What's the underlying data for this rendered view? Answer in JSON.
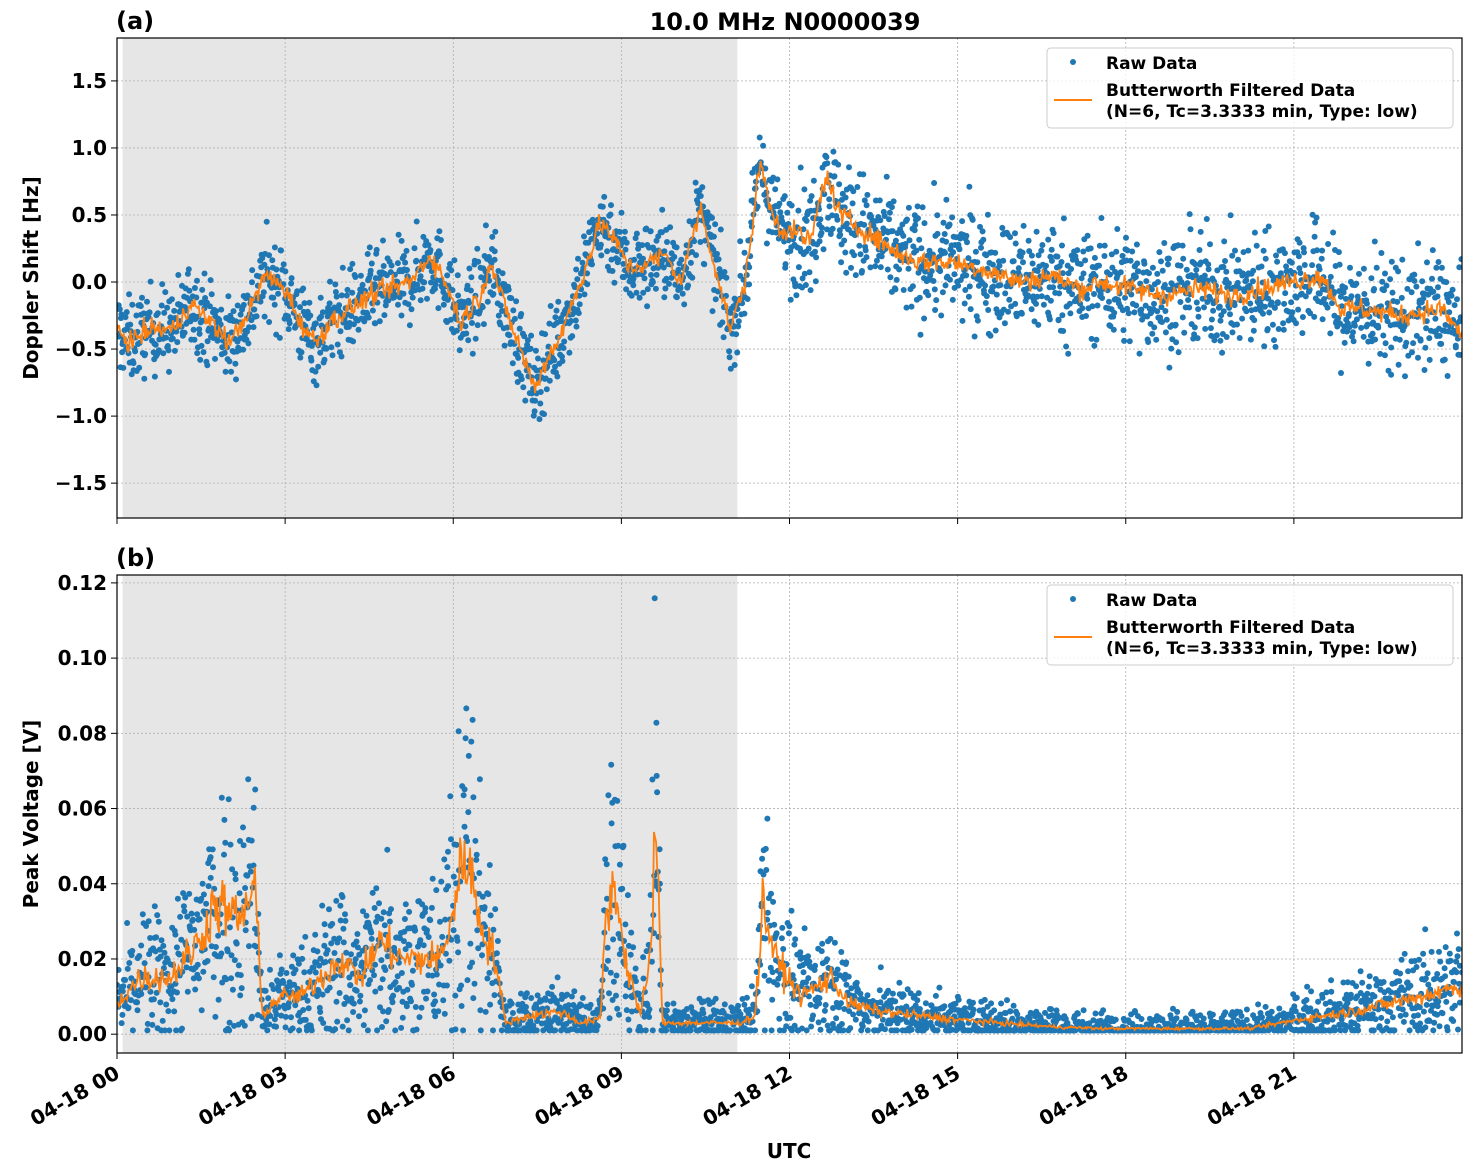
{
  "title": "10.0 MHz N0000039",
  "colors": {
    "raw": "#1f77b4",
    "filtered": "#ff7f0e",
    "shade": "#e6e6e6",
    "grid": "#b0b0b0"
  },
  "chart_data": [
    {
      "type": "scatter",
      "panel_label": "(a)",
      "ylabel": "Doppler Shift [Hz]",
      "xlabel": "",
      "xlim_hours": [
        0,
        24
      ],
      "ylim": [
        -1.76,
        1.82
      ],
      "yticks": [
        -1.5,
        -1.0,
        -0.5,
        0.0,
        0.5,
        1.0,
        1.5
      ],
      "ytick_labels": [
        "−1.5",
        "−1.0",
        "−0.5",
        "0.0",
        "0.5",
        "1.0",
        "1.5"
      ],
      "grid": true,
      "legend_placement": "upper-right",
      "legend": [
        "Raw Data",
        "Butterworth Filtered Data",
        "(N=6, Tc=3.3333 min, Type: low)"
      ],
      "shaded_span_hours": [
        0.1,
        11.07
      ],
      "filtered_series": {
        "name": "Butterworth Filtered Data (N=6, Tc=3.3333 min, Type: low)",
        "x_hours": [
          0,
          0.23,
          0.59,
          1.04,
          1.3,
          1.66,
          2.02,
          2.38,
          2.64,
          3,
          3.27,
          3.54,
          3.8,
          4.16,
          4.52,
          4.88,
          5.23,
          5.59,
          5.86,
          6.13,
          6.48,
          6.66,
          6.93,
          7.2,
          7.46,
          7.64,
          7.91,
          8.27,
          8.63,
          8.89,
          9.16,
          9.52,
          9.79,
          10.05,
          10.41,
          10.68,
          10.95,
          11.21,
          11.48,
          11.66,
          11.84,
          12.2,
          12.38,
          12.64,
          12.91,
          13.27,
          13.63,
          13.98,
          14.34,
          14.88,
          15.41,
          15.77,
          16.13,
          16.66,
          17.2,
          17.55,
          18.09,
          18.63,
          19.34,
          19.88,
          20.41,
          20.95,
          21.48,
          21.84,
          22.2,
          22.91,
          23.63,
          24
        ],
        "y": [
          -0.35,
          -0.45,
          -0.35,
          -0.35,
          -0.15,
          -0.3,
          -0.45,
          -0.2,
          0.05,
          -0.05,
          -0.3,
          -0.45,
          -0.3,
          -0.2,
          -0.1,
          -0.05,
          0.0,
          0.2,
          0.0,
          -0.3,
          -0.1,
          0.15,
          -0.2,
          -0.5,
          -0.8,
          -0.6,
          -0.4,
          0.0,
          0.45,
          0.3,
          0.1,
          0.15,
          0.2,
          0.0,
          0.55,
          0.1,
          -0.35,
          0.0,
          0.9,
          0.55,
          0.4,
          0.35,
          0.3,
          0.8,
          0.5,
          0.4,
          0.3,
          0.2,
          0.15,
          0.15,
          0.1,
          0.05,
          0.0,
          0.05,
          -0.05,
          0.0,
          -0.05,
          -0.1,
          -0.05,
          -0.1,
          -0.05,
          0.0,
          0.05,
          -0.2,
          -0.2,
          -0.25,
          -0.2,
          -0.4
        ]
      },
      "raw_series": {
        "name": "Raw Data",
        "spread_before_12h": 0.28,
        "spread_after_12h": 0.38
      }
    },
    {
      "type": "scatter",
      "panel_label": "(b)",
      "ylabel": "Peak Voltage [V]",
      "xlabel": "UTC",
      "xlim_hours": [
        0,
        24
      ],
      "ylim": [
        -0.005,
        0.1221
      ],
      "yticks": [
        0.0,
        0.02,
        0.04,
        0.06,
        0.08,
        0.1,
        0.12
      ],
      "ytick_labels": [
        "0.00",
        "0.02",
        "0.04",
        "0.06",
        "0.08",
        "0.10",
        "0.12"
      ],
      "xticks_hours": [
        0,
        3,
        6,
        9,
        12,
        15,
        18,
        21
      ],
      "xtick_labels": [
        "04-18 00",
        "04-18 03",
        "04-18 06",
        "04-18 09",
        "04-18 12",
        "04-18 15",
        "04-18 18",
        "04-18 21"
      ],
      "grid": true,
      "legend_placement": "upper-right",
      "legend": [
        "Raw Data",
        "Butterworth Filtered Data",
        "(N=6, Tc=3.3333 min, Type: low)"
      ],
      "shaded_span_hours": [
        0.1,
        11.07
      ],
      "filtered_series": {
        "name": "Butterworth Filtered Data (N=6, Tc=3.3333 min, Type: low)",
        "x_hours": [
          0,
          0.41,
          0.95,
          1.48,
          1.75,
          2.2,
          2.46,
          2.59,
          2.91,
          3.27,
          3.63,
          3.98,
          4.34,
          4.7,
          5.05,
          5.41,
          5.77,
          6.04,
          6.21,
          6.48,
          6.75,
          6.93,
          7.38,
          7.91,
          8.27,
          8.63,
          8.71,
          8.89,
          9.07,
          9.34,
          9.52,
          9.61,
          9.73,
          10.41,
          11.13,
          11.39,
          11.52,
          11.75,
          12.2,
          12.73,
          13.09,
          13.63,
          14.88,
          16.66,
          17.55,
          19.34,
          20.23,
          21.13,
          22.02,
          23.27,
          24
        ],
        "y": [
          0.008,
          0.015,
          0.015,
          0.025,
          0.035,
          0.03,
          0.04,
          0.005,
          0.01,
          0.01,
          0.015,
          0.02,
          0.015,
          0.025,
          0.02,
          0.02,
          0.02,
          0.035,
          0.05,
          0.03,
          0.02,
          0.003,
          0.005,
          0.006,
          0.003,
          0.004,
          0.03,
          0.04,
          0.02,
          0.005,
          0.02,
          0.06,
          0.003,
          0.003,
          0.003,
          0.005,
          0.035,
          0.02,
          0.01,
          0.015,
          0.008,
          0.006,
          0.004,
          0.002,
          0.0015,
          0.0015,
          0.0015,
          0.004,
          0.006,
          0.01,
          0.013
        ]
      },
      "raw_series": {
        "name": "Raw Data",
        "relative_spread": 0.8
      }
    }
  ]
}
